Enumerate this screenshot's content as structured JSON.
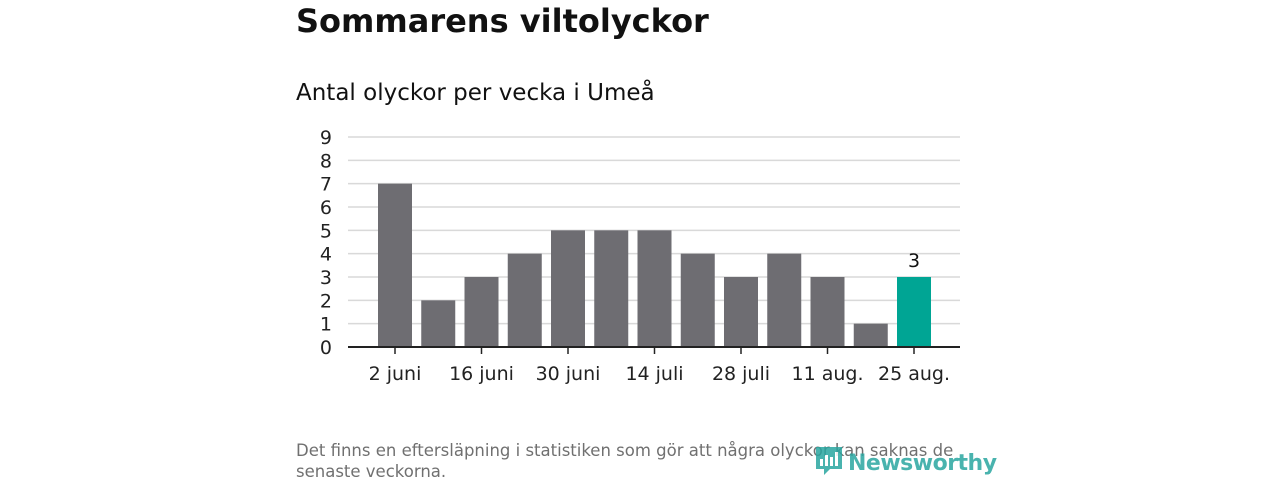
{
  "title": "Sommarens viltolyckor",
  "subtitle": "Antal olyckor per vecka i Umeå",
  "footnote": "Det finns en eftersläpning i statistiken som gör att några olyckor kan saknas de senaste veckorna.",
  "logo": {
    "text": "Newsworthy",
    "icon": "newsworthy-logo-icon"
  },
  "colors": {
    "bar": "#6e6d72",
    "highlight": "#00a594",
    "grid": "#d9d9d9",
    "axis": "#222222",
    "logo": "#2aa6a0"
  },
  "chart_data": {
    "type": "bar",
    "title": "Antal olyckor per vecka i Umeå",
    "xlabel": "",
    "ylabel": "",
    "ylim": [
      0,
      9
    ],
    "yticks": [
      "0",
      "1",
      "2",
      "3",
      "4",
      "5",
      "6",
      "7",
      "8",
      "9"
    ],
    "values": [
      7,
      2,
      3,
      4,
      5,
      5,
      5,
      4,
      3,
      4,
      3,
      1,
      3
    ],
    "xticks": [
      {
        "index": 0,
        "label": "2 juni"
      },
      {
        "index": 2,
        "label": "16 juni"
      },
      {
        "index": 4,
        "label": "30 juni"
      },
      {
        "index": 6,
        "label": "14 juli"
      },
      {
        "index": 8,
        "label": "28 juli"
      },
      {
        "index": 10,
        "label": "11 aug."
      },
      {
        "index": 12,
        "label": "25 aug."
      }
    ],
    "highlight_index": 12,
    "data_labels": [
      {
        "index": 12,
        "label": "3"
      }
    ],
    "grid": true,
    "legend": "none"
  }
}
